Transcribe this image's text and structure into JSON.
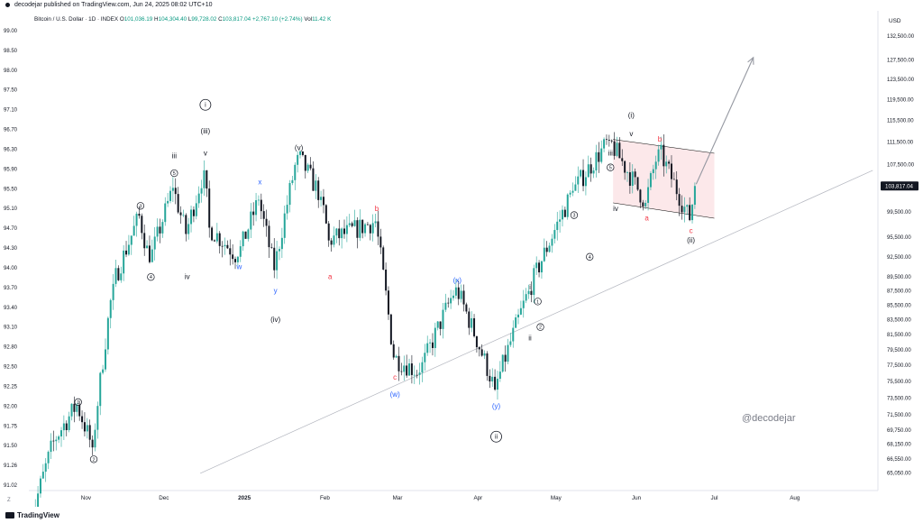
{
  "header": {
    "published": "decodejar published on TradingView.com, Jun 24, 2025 08:02 UTC+10"
  },
  "legend": {
    "symbol": "Bitcoin / U.S. Dollar · 1D · INDEX",
    "o_label": "O",
    "o": "101,036.19",
    "h_label": "H",
    "h": "104,304.40",
    "l_label": "L",
    "l": "99,728.02",
    "c_label": "C",
    "c": "103,817.04",
    "change": "+2,767.10 (+2.74%)",
    "vol_label": "Vol",
    "vol": "11.42 K"
  },
  "watermark": "@decodejar",
  "footer": {
    "brand": "TradingView",
    "zoom": "Z"
  },
  "colors": {
    "up": "#26a69a",
    "down": "#131722",
    "wave_black": "#131722",
    "wave_blue": "#2962ff",
    "wave_red": "#f23645",
    "box_fill": "#fce4e6",
    "box_stroke": "#000000",
    "trendline": "#b2b5be",
    "arrow": "#9598a1"
  },
  "chart_data": {
    "type": "candlestick",
    "title": "Bitcoin / U.S. Dollar · 1D · INDEX",
    "left_axis_ticks": [
      "99.00",
      "98.50",
      "98.00",
      "97.50",
      "97.10",
      "96.70",
      "96.30",
      "95.90",
      "95.50",
      "95.10",
      "94.70",
      "94.30",
      "94.00",
      "93.70",
      "93.40",
      "93.10",
      "92.80",
      "92.50",
      "92.25",
      "92.00",
      "91.75",
      "91.50",
      "91.26",
      "91.02"
    ],
    "right_axis_unit": "USD",
    "right_axis_ticks": [
      "132,500.00",
      "127,500.00",
      "123,500.00",
      "119,500.00",
      "115,500.00",
      "111,500.00",
      "107,500.00",
      "103,817.04",
      "99,500.00",
      "95,500.00",
      "92,500.00",
      "89,500.00",
      "87,500.00",
      "85,500.00",
      "83,500.00",
      "81,500.00",
      "79,500.00",
      "77,500.00",
      "75,500.00",
      "73,500.00",
      "71,500.00",
      "69,750.00",
      "68,150.00",
      "66,550.00",
      "65,050.00"
    ],
    "last_price": "103,817.04",
    "x_ticks": [
      "Nov",
      "Dec",
      "2025",
      "Feb",
      "Mar",
      "Apr",
      "May",
      "Jun",
      "Jul",
      "Aug"
    ],
    "x_tick_dates": [
      "2024-11-01",
      "2024-12-01",
      "2025-01-01",
      "2025-02-01",
      "2025-03-01",
      "2025-04-01",
      "2025-05-01",
      "2025-06-01",
      "2025-07-01",
      "2025-08-01"
    ],
    "key_points": [
      {
        "date": "2024-10-10",
        "close": 59000
      },
      {
        "date": "2024-10-20",
        "close": 68500
      },
      {
        "date": "2024-10-29",
        "close": 72700
      },
      {
        "date": "2024-11-04",
        "close": 67800
      },
      {
        "date": "2024-11-12",
        "close": 88500
      },
      {
        "date": "2024-11-22",
        "close": 98900
      },
      {
        "date": "2024-11-26",
        "close": 91700
      },
      {
        "date": "2024-12-05",
        "close": 103500
      },
      {
        "date": "2024-12-10",
        "close": 96000
      },
      {
        "date": "2024-12-17",
        "close": 106500
      },
      {
        "date": "2024-12-19",
        "close": 97000
      },
      {
        "date": "2024-12-30",
        "close": 92500
      },
      {
        "date": "2025-01-07",
        "close": 101500
      },
      {
        "date": "2025-01-13",
        "close": 90500
      },
      {
        "date": "2025-01-22",
        "close": 109200
      },
      {
        "date": "2025-01-31",
        "close": 102000
      },
      {
        "date": "2025-02-03",
        "close": 95000
      },
      {
        "date": "2025-02-21",
        "close": 98000
      },
      {
        "date": "2025-02-28",
        "close": 78500
      },
      {
        "date": "2025-03-10",
        "close": 76600
      },
      {
        "date": "2025-03-24",
        "close": 88000
      },
      {
        "date": "2025-04-08",
        "close": 74500
      },
      {
        "date": "2025-04-21",
        "close": 87500
      },
      {
        "date": "2025-05-08",
        "close": 103000
      },
      {
        "date": "2025-05-22",
        "close": 111800
      },
      {
        "date": "2025-06-05",
        "close": 101000
      },
      {
        "date": "2025-06-10",
        "close": 110200
      },
      {
        "date": "2025-06-22",
        "close": 98200
      },
      {
        "date": "2025-06-24",
        "close": 103817
      }
    ],
    "annotations": {
      "wave_labels": [
        {
          "text": "①",
          "date": "2024-10-29",
          "price": 73000,
          "color": "black",
          "pos": "above"
        },
        {
          "text": "②",
          "date": "2024-11-04",
          "price": 66500,
          "color": "black",
          "pos": "below"
        },
        {
          "text": "③",
          "date": "2024-11-22",
          "price": 100500,
          "color": "black",
          "pos": "above"
        },
        {
          "text": "④",
          "date": "2024-11-26",
          "price": 89500,
          "color": "black",
          "pos": "below"
        },
        {
          "text": "⑤",
          "date": "2024-12-05",
          "price": 106000,
          "color": "black",
          "pos": "above"
        },
        {
          "text": "iii",
          "date": "2024-12-05",
          "price": 109000,
          "color": "black",
          "pos": "above"
        },
        {
          "text": "iv",
          "date": "2024-12-10",
          "price": 89500,
          "color": "black",
          "pos": "below"
        },
        {
          "text": "v",
          "date": "2024-12-17",
          "price": 109500,
          "color": "black",
          "pos": "above"
        },
        {
          "text": "(iii)",
          "date": "2024-12-17",
          "price": 113500,
          "color": "black",
          "pos": "above"
        },
        {
          "text": "ⓘ",
          "date": "2024-12-17",
          "price": 118500,
          "color": "black",
          "pos": "above"
        },
        {
          "text": "w",
          "date": "2024-12-30",
          "price": 91000,
          "color": "blue",
          "pos": "below"
        },
        {
          "text": "x",
          "date": "2025-01-07",
          "price": 104500,
          "color": "blue",
          "pos": "above"
        },
        {
          "text": "y",
          "date": "2025-01-13",
          "price": 87500,
          "color": "blue",
          "pos": "below"
        },
        {
          "text": "(iv)",
          "date": "2025-01-13",
          "price": 83500,
          "color": "black",
          "pos": "below"
        },
        {
          "text": "(v)",
          "date": "2025-01-22",
          "price": 110500,
          "color": "black",
          "pos": "above"
        },
        {
          "text": "b",
          "date": "2025-02-21",
          "price": 100000,
          "color": "red",
          "pos": "above"
        },
        {
          "text": "a",
          "date": "2025-02-03",
          "price": 89500,
          "color": "red",
          "pos": "below"
        },
        {
          "text": "c",
          "date": "2025-02-28",
          "price": 76000,
          "color": "red",
          "pos": "below"
        },
        {
          "text": "(w)",
          "date": "2025-02-28",
          "price": 73900,
          "color": "blue",
          "pos": "below"
        },
        {
          "text": "(x)",
          "date": "2025-03-24",
          "price": 89000,
          "color": "blue",
          "pos": "above"
        },
        {
          "text": "(y)",
          "date": "2025-04-08",
          "price": 72500,
          "color": "blue",
          "pos": "below"
        },
        {
          "text": "ⓘⓘ",
          "date": "2025-04-08",
          "price": 69000,
          "color": "black",
          "pos": "below"
        },
        {
          "text": "i",
          "date": "2025-04-21",
          "price": 88000,
          "color": "black",
          "pos": "above"
        },
        {
          "text": "ⓐ",
          "date": "2025-04-24",
          "price": 86000,
          "color": "black",
          "pos": "above"
        },
        {
          "text": "ii",
          "date": "2025-04-21",
          "price": 81000,
          "color": "black",
          "pos": "below"
        },
        {
          "text": "②",
          "date": "2025-04-25",
          "price": 82500,
          "color": "black",
          "pos": "below"
        },
        {
          "text": "③",
          "date": "2025-05-08",
          "price": 99000,
          "color": "black",
          "pos": "above"
        },
        {
          "text": "④",
          "date": "2025-05-14",
          "price": 92500,
          "color": "black",
          "pos": "below"
        },
        {
          "text": "⑤",
          "date": "2025-05-22",
          "price": 107000,
          "color": "black",
          "pos": "above"
        },
        {
          "text": "iii",
          "date": "2025-05-22",
          "price": 109500,
          "color": "black",
          "pos": "above"
        },
        {
          "text": "iv",
          "date": "2025-05-24",
          "price": 100000,
          "color": "black",
          "pos": "below"
        },
        {
          "text": "v",
          "date": "2025-05-30",
          "price": 113000,
          "color": "black",
          "pos": "above"
        },
        {
          "text": "(i)",
          "date": "2025-05-30",
          "price": 116500,
          "color": "black",
          "pos": "above"
        },
        {
          "text": "b",
          "date": "2025-06-10",
          "price": 112000,
          "color": "red",
          "pos": "above"
        },
        {
          "text": "a",
          "date": "2025-06-05",
          "price": 98500,
          "color": "red",
          "pos": "below"
        },
        {
          "text": "c",
          "date": "2025-06-22",
          "price": 96500,
          "color": "red",
          "pos": "below"
        },
        {
          "text": "(ii)",
          "date": "2025-06-22",
          "price": 95000,
          "color": "black",
          "pos": "below"
        }
      ],
      "channel": {
        "start": "2025-05-23",
        "end": "2025-07-01",
        "top": [
          112000,
          109500
        ],
        "bottom": [
          101000,
          98500
        ]
      },
      "projection_arrow": {
        "from": {
          "date": "2025-06-24",
          "price": 103817
        },
        "to": {
          "date": "2025-07-16",
          "price": 128000
        }
      },
      "trendline": {
        "from": {
          "date": "2024-12-15",
          "price": 65000
        },
        "to": {
          "date": "2025-08-31",
          "price": 106500
        }
      }
    }
  }
}
